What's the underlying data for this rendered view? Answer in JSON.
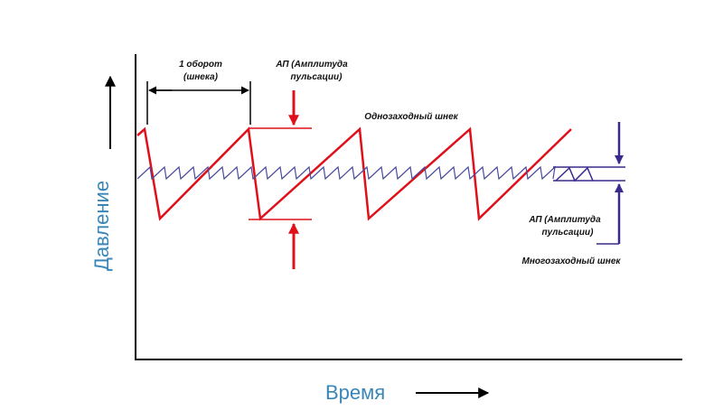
{
  "diagram": {
    "y_axis_label": "Давление",
    "x_axis_label": "Время",
    "revolution_label": [
      "1 оборот",
      "(шнека)"
    ],
    "single_amplitude_label": [
      "АП (Амплитуда",
      "пульсации)"
    ],
    "single_screw_label": "Однозаходный шнек",
    "multi_amplitude_label": [
      "АП (Амплитуда",
      "пульсации)"
    ],
    "multi_screw_label": "Многозаходный шнек"
  }
}
